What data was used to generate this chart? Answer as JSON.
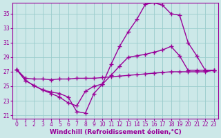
{
  "xlabel": "Windchill (Refroidissement éolien,°C)",
  "background_color": "#cce8e8",
  "line_color": "#990099",
  "grid_color": "#99cccc",
  "xlim": [
    -0.5,
    23.5
  ],
  "ylim": [
    20.5,
    36.5
  ],
  "xticks": [
    0,
    1,
    2,
    3,
    4,
    5,
    6,
    7,
    8,
    9,
    10,
    11,
    12,
    13,
    14,
    15,
    16,
    17,
    18,
    19,
    20,
    21,
    22,
    23
  ],
  "yticks": [
    21,
    23,
    25,
    27,
    29,
    31,
    33,
    35
  ],
  "line1_x": [
    0,
    1,
    2,
    3,
    4,
    5,
    6,
    7,
    8,
    9,
    10,
    11,
    12,
    13,
    14,
    15,
    16,
    17,
    18,
    19,
    20,
    21,
    22,
    23
  ],
  "line1_y": [
    27.3,
    26.1,
    26.0,
    26.0,
    25.9,
    26.0,
    26.0,
    26.1,
    26.1,
    26.1,
    26.2,
    26.3,
    26.4,
    26.5,
    26.6,
    26.7,
    26.8,
    26.9,
    27.0,
    27.0,
    27.0,
    27.0,
    27.0,
    27.2
  ],
  "line2_x": [
    0,
    1,
    2,
    3,
    4,
    5,
    6,
    7,
    8,
    9,
    10,
    11,
    12,
    13,
    14,
    15,
    16,
    17,
    18,
    19,
    20,
    21,
    22,
    23
  ],
  "line2_y": [
    27.3,
    25.8,
    25.1,
    24.5,
    24.0,
    23.5,
    22.7,
    22.3,
    24.3,
    25.0,
    25.3,
    26.5,
    27.8,
    29.0,
    29.2,
    29.4,
    29.7,
    30.0,
    30.5,
    29.2,
    27.2,
    27.2,
    27.2,
    27.2
  ],
  "line3_x": [
    0,
    1,
    2,
    3,
    4,
    5,
    6,
    7,
    8,
    9,
    10,
    11,
    12,
    13,
    14,
    15,
    16,
    17,
    18,
    19,
    20,
    21,
    22,
    23
  ],
  "line3_y": [
    27.3,
    25.8,
    25.1,
    24.5,
    24.2,
    24.0,
    23.5,
    21.5,
    21.3,
    24.0,
    25.3,
    28.0,
    30.5,
    32.5,
    34.2,
    36.3,
    36.5,
    36.2,
    35.0,
    34.8,
    31.0,
    29.2,
    27.2,
    27.2
  ],
  "marker": "+",
  "markersize": 4,
  "linewidth": 1.0,
  "tick_labelsize": 5.5,
  "xlabel_fontsize": 6.5,
  "figsize": [
    3.2,
    2.0
  ],
  "dpi": 100
}
